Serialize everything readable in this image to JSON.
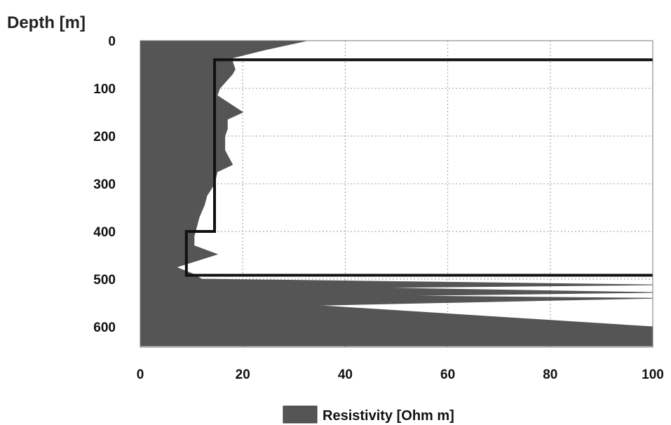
{
  "chart_data": {
    "type": "area",
    "title": "Depth [m]",
    "xlabel": "",
    "ylabel": "Depth [m]",
    "xlim": [
      0,
      100
    ],
    "ylim": [
      0,
      640
    ],
    "y_inverted": true,
    "grid": true,
    "xticks": [
      0,
      20,
      40,
      60,
      80,
      100
    ],
    "yticks": [
      0,
      100,
      200,
      300,
      400,
      500,
      600
    ],
    "legend": {
      "position": "bottom-center",
      "entries": [
        "Resistivity [Ohm m]"
      ]
    },
    "colors": {
      "fill": "#555555",
      "line": "#111111",
      "grid": "#9a9a9a"
    },
    "series": [
      {
        "name": "Resistivity [Ohm m]",
        "style": "filled-area",
        "points": [
          [
            32.5,
            0
          ],
          [
            24,
            20
          ],
          [
            18,
            36
          ],
          [
            18,
            44
          ],
          [
            18.5,
            60
          ],
          [
            18,
            70
          ],
          [
            15.5,
            100
          ],
          [
            15,
            115
          ],
          [
            20,
            150
          ],
          [
            17,
            165
          ],
          [
            17,
            185
          ],
          [
            16.5,
            200
          ],
          [
            16.5,
            230
          ],
          [
            18,
            260
          ],
          [
            15,
            275
          ],
          [
            14.5,
            300
          ],
          [
            13,
            325
          ],
          [
            12.5,
            345
          ],
          [
            11.5,
            370
          ],
          [
            11,
            390
          ],
          [
            10.5,
            410
          ],
          [
            10.5,
            430
          ],
          [
            15,
            448
          ],
          [
            10,
            465
          ],
          [
            7,
            475
          ],
          [
            10.5,
            490
          ],
          [
            12,
            500
          ],
          [
            100,
            512
          ],
          [
            44,
            518
          ],
          [
            100,
            528
          ],
          [
            48,
            535
          ],
          [
            100,
            540
          ],
          [
            34,
            555
          ],
          [
            100,
            600
          ],
          [
            100,
            640
          ]
        ]
      },
      {
        "name": "",
        "style": "step-line",
        "points": [
          [
            100,
            40
          ],
          [
            14.5,
            40
          ],
          [
            14.5,
            400
          ],
          [
            9,
            400
          ],
          [
            9,
            492
          ],
          [
            100,
            492
          ]
        ]
      }
    ]
  }
}
